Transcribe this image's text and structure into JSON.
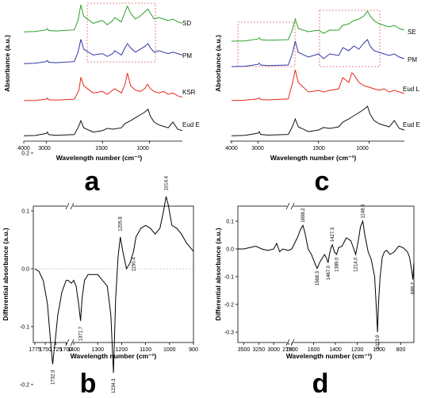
{
  "chart_data": [
    {
      "panel": "a",
      "type": "line",
      "xlabel": "Wavelength number (cm⁻¹)",
      "ylabel": "Absorbance (a.u.)",
      "xticks": [
        "4000",
        "3000",
        "1500",
        "1000"
      ],
      "xlim": [
        4000,
        600
      ],
      "series": [
        {
          "name": "SD",
          "color": "#2ca02c",
          "x": [
            4000,
            3500,
            3000,
            2950,
            2900,
            2000,
            1800,
            1760,
            1730,
            1700,
            1600,
            1500,
            1450,
            1390,
            1370,
            1300,
            1260,
            1235,
            1200,
            1150,
            1100,
            1050,
            1015,
            990,
            950,
            900,
            850,
            800,
            750,
            700,
            650
          ],
          "y": [
            0.05,
            0.06,
            0.12,
            0.16,
            0.1,
            0.08,
            0.12,
            0.45,
            1.0,
            0.6,
            0.35,
            0.45,
            0.3,
            0.45,
            0.55,
            0.4,
            0.75,
            0.95,
            0.7,
            0.5,
            0.6,
            0.75,
            0.85,
            0.7,
            0.5,
            0.55,
            0.5,
            0.45,
            0.5,
            0.4,
            0.35
          ]
        },
        {
          "name": "PM",
          "color": "#3333aa",
          "x": [
            4000,
            3500,
            3000,
            2950,
            2900,
            2000,
            1800,
            1760,
            1730,
            1700,
            1600,
            1500,
            1450,
            1390,
            1370,
            1300,
            1260,
            1235,
            1200,
            1150,
            1100,
            1050,
            1015,
            990,
            950,
            900,
            850,
            800,
            750,
            700,
            650
          ],
          "y": [
            0.05,
            0.06,
            0.12,
            0.16,
            0.1,
            0.08,
            0.12,
            0.45,
            0.9,
            0.55,
            0.35,
            0.4,
            0.3,
            0.4,
            0.5,
            0.35,
            0.6,
            0.75,
            0.6,
            0.45,
            0.55,
            0.65,
            0.75,
            0.6,
            0.45,
            0.5,
            0.45,
            0.4,
            0.45,
            0.4,
            0.35
          ]
        },
        {
          "name": "KSR",
          "color": "#e8281e",
          "x": [
            4000,
            3500,
            3000,
            2950,
            2900,
            2000,
            1800,
            1750,
            1730,
            1700,
            1600,
            1500,
            1450,
            1390,
            1370,
            1300,
            1260,
            1235,
            1200,
            1150,
            1100,
            1050,
            1020,
            990,
            950,
            900,
            850,
            800,
            750,
            700,
            650
          ],
          "y": [
            0.03,
            0.04,
            0.08,
            0.12,
            0.06,
            0.05,
            0.08,
            0.4,
            0.85,
            0.55,
            0.3,
            0.35,
            0.25,
            0.4,
            0.45,
            0.3,
            0.6,
            1.0,
            0.55,
            0.4,
            0.35,
            0.45,
            0.6,
            0.45,
            0.35,
            0.3,
            0.35,
            0.25,
            0.3,
            0.2,
            0.15
          ]
        },
        {
          "name": "Eud E",
          "color": "#111111",
          "x": [
            4000,
            3500,
            3000,
            2950,
            2900,
            2000,
            1800,
            1760,
            1730,
            1700,
            1600,
            1500,
            1450,
            1390,
            1300,
            1260,
            1200,
            1150,
            1100,
            1050,
            1015,
            990,
            950,
            900,
            850,
            800,
            750,
            700,
            650
          ],
          "y": [
            0.02,
            0.03,
            0.1,
            0.15,
            0.06,
            0.04,
            0.06,
            0.3,
            0.55,
            0.3,
            0.15,
            0.2,
            0.28,
            0.25,
            0.3,
            0.45,
            0.55,
            0.65,
            0.75,
            0.85,
            0.95,
            0.7,
            0.5,
            0.4,
            0.35,
            0.3,
            0.5,
            0.25,
            0.2
          ]
        }
      ]
    },
    {
      "panel": "c",
      "type": "line",
      "xlabel": "Wavelength number (cm⁻¹)",
      "ylabel": "Absorbance (a.u.)",
      "xticks": [
        "4000",
        "3000",
        "1500",
        "1000"
      ],
      "xlim": [
        4000,
        600
      ],
      "series": [
        {
          "name": "SE",
          "color": "#2ca02c",
          "x": [
            4000,
            3500,
            3000,
            2950,
            2900,
            2000,
            1800,
            1760,
            1730,
            1700,
            1600,
            1500,
            1450,
            1390,
            1300,
            1260,
            1200,
            1150,
            1100,
            1050,
            1015,
            990,
            950,
            900,
            850,
            800,
            750,
            700,
            650
          ],
          "y": [
            0.05,
            0.06,
            0.12,
            0.16,
            0.1,
            0.08,
            0.1,
            0.4,
            0.75,
            0.45,
            0.35,
            0.4,
            0.3,
            0.4,
            0.4,
            0.55,
            0.6,
            0.7,
            0.75,
            0.85,
            1.0,
            0.85,
            0.7,
            0.6,
            0.55,
            0.5,
            0.55,
            0.45,
            0.4
          ]
        },
        {
          "name": "PM",
          "color": "#3333aa",
          "x": [
            4000,
            3500,
            3000,
            2950,
            2900,
            2000,
            1800,
            1760,
            1730,
            1700,
            1600,
            1500,
            1450,
            1390,
            1300,
            1260,
            1200,
            1150,
            1100,
            1050,
            1015,
            990,
            950,
            900,
            850,
            800,
            750,
            700,
            650
          ],
          "y": [
            0.05,
            0.06,
            0.12,
            0.16,
            0.1,
            0.08,
            0.1,
            0.45,
            0.85,
            0.5,
            0.35,
            0.45,
            0.3,
            0.45,
            0.4,
            0.65,
            0.55,
            0.7,
            0.6,
            0.8,
            0.9,
            0.7,
            0.55,
            0.5,
            0.45,
            0.4,
            0.45,
            0.35,
            0.3
          ]
        },
        {
          "name": "Eud L",
          "color": "#e8281e",
          "x": [
            4000,
            3500,
            3000,
            2950,
            2900,
            2000,
            1800,
            1760,
            1730,
            1700,
            1600,
            1500,
            1450,
            1390,
            1300,
            1260,
            1200,
            1170,
            1150,
            1100,
            1050,
            1000,
            950,
            900,
            850,
            800,
            750,
            700,
            650
          ],
          "y": [
            0.03,
            0.04,
            0.08,
            0.12,
            0.06,
            0.05,
            0.08,
            0.55,
            1.0,
            0.6,
            0.3,
            0.35,
            0.3,
            0.35,
            0.4,
            0.75,
            0.6,
            0.9,
            0.85,
            0.6,
            0.5,
            0.45,
            0.4,
            0.35,
            0.4,
            0.3,
            0.35,
            0.3,
            0.25
          ]
        },
        {
          "name": "Eud E",
          "color": "#111111",
          "x": [
            4000,
            3500,
            3000,
            2950,
            2900,
            2000,
            1800,
            1760,
            1730,
            1700,
            1600,
            1500,
            1450,
            1390,
            1300,
            1260,
            1200,
            1150,
            1100,
            1050,
            1015,
            990,
            950,
            900,
            850,
            800,
            750,
            700,
            650
          ],
          "y": [
            0.02,
            0.03,
            0.1,
            0.15,
            0.06,
            0.04,
            0.06,
            0.3,
            0.55,
            0.3,
            0.15,
            0.2,
            0.28,
            0.25,
            0.3,
            0.45,
            0.55,
            0.65,
            0.75,
            0.85,
            0.95,
            0.7,
            0.5,
            0.4,
            0.35,
            0.3,
            0.5,
            0.25,
            0.2
          ]
        }
      ]
    },
    {
      "panel": "b",
      "type": "line",
      "xlabel": "Wavelength number (cm⁻¹)",
      "ylabel": "Differential absorbance (a.u.)",
      "ylim": [
        -0.22,
        0.2
      ],
      "yticks": [
        "0.2",
        "0.1",
        "0.0",
        "-0.1",
        "-0.2"
      ],
      "xticks": [
        "1775",
        "1750",
        "1725",
        "1700",
        "1400",
        "1300",
        "1200",
        "1100",
        "1000",
        "900"
      ],
      "peaks": [
        "1732.3",
        "1371.7",
        "1234.3",
        "1205.8",
        "1150.4",
        "1014.4"
      ],
      "series": [
        {
          "name": "",
          "color": "#000000",
          "x": [
            1775,
            1765,
            1755,
            1745,
            1738,
            1732.3,
            1727,
            1720,
            1710,
            1700,
            1695,
            1410,
            1400,
            1390,
            1380,
            1371.7,
            1365,
            1355,
            1340,
            1300,
            1260,
            1245,
            1234.3,
            1225,
            1215,
            1205.8,
            1195,
            1180,
            1165,
            1150.4,
            1140,
            1120,
            1100,
            1080,
            1060,
            1040,
            1025,
            1014.4,
            1005,
            990,
            970,
            950,
            930,
            910,
            900
          ],
          "y": [
            0.0,
            -0.005,
            -0.02,
            -0.06,
            -0.12,
            -0.165,
            -0.13,
            -0.08,
            -0.04,
            -0.02,
            -0.02,
            -0.025,
            -0.02,
            -0.03,
            -0.06,
            -0.09,
            -0.05,
            -0.02,
            -0.01,
            -0.01,
            -0.03,
            -0.08,
            -0.18,
            -0.05,
            0.02,
            0.055,
            0.03,
            0.0,
            0.01,
            0.03,
            0.055,
            0.07,
            0.075,
            0.07,
            0.06,
            0.07,
            0.1,
            0.125,
            0.11,
            0.075,
            0.07,
            0.06,
            0.045,
            0.035,
            0.03
          ]
        }
      ]
    },
    {
      "panel": "d",
      "type": "line",
      "xlabel": "Wavelength number (cm⁻¹)",
      "ylabel": "Differential absorbance (a.u.)",
      "ylim": [
        -0.35,
        0.15
      ],
      "yticks": [
        "0.1",
        "0.0",
        "-0.1",
        "-0.2",
        "-0.3"
      ],
      "xticks": [
        "3500",
        "3250",
        "3000",
        "2750",
        "1800",
        "1600",
        "1400",
        "1200",
        "1000",
        "800"
      ],
      "peaks": [
        "1698.2",
        "1568.3",
        "1467.0",
        "1427.3",
        "1389.0",
        "1214.0",
        "1148.5",
        "1013.9",
        "689.2"
      ],
      "series": [
        {
          "name": "",
          "color": "#000000",
          "x": [
            3600,
            3500,
            3400,
            3300,
            3200,
            3100,
            3000,
            2950,
            2900,
            2850,
            2750,
            1800,
            1750,
            1720,
            1698.2,
            1680,
            1650,
            1620,
            1590,
            1568.3,
            1540,
            1500,
            1480,
            1467,
            1455,
            1440,
            1427.3,
            1410,
            1389,
            1370,
            1340,
            1300,
            1260,
            1240,
            1214,
            1190,
            1170,
            1148.5,
            1130,
            1100,
            1070,
            1040,
            1020,
            1013.9,
            1005,
            990,
            970,
            950,
            930,
            900,
            860,
            820,
            780,
            740,
            720,
            700,
            689.2,
            680
          ],
          "y": [
            0.0,
            0.0,
            0.005,
            0.01,
            0.0,
            -0.005,
            0.0,
            0.02,
            -0.01,
            0.0,
            -0.005,
            0.0,
            0.04,
            0.07,
            0.085,
            0.06,
            0.0,
            -0.02,
            -0.05,
            -0.07,
            -0.045,
            -0.02,
            -0.035,
            -0.05,
            -0.02,
            0.005,
            0.015,
            -0.01,
            -0.02,
            0.005,
            0.01,
            0.04,
            0.03,
            0.01,
            -0.02,
            0.03,
            0.08,
            0.1,
            0.05,
            -0.01,
            -0.04,
            -0.1,
            -0.25,
            -0.3,
            -0.2,
            -0.1,
            -0.03,
            -0.01,
            -0.005,
            -0.02,
            -0.01,
            0.01,
            0.005,
            -0.01,
            -0.03,
            -0.08,
            -0.11,
            -0.05
          ]
        }
      ]
    }
  ],
  "panel_labels": {
    "a": "a",
    "b": "b",
    "c": "c",
    "d": "d"
  }
}
